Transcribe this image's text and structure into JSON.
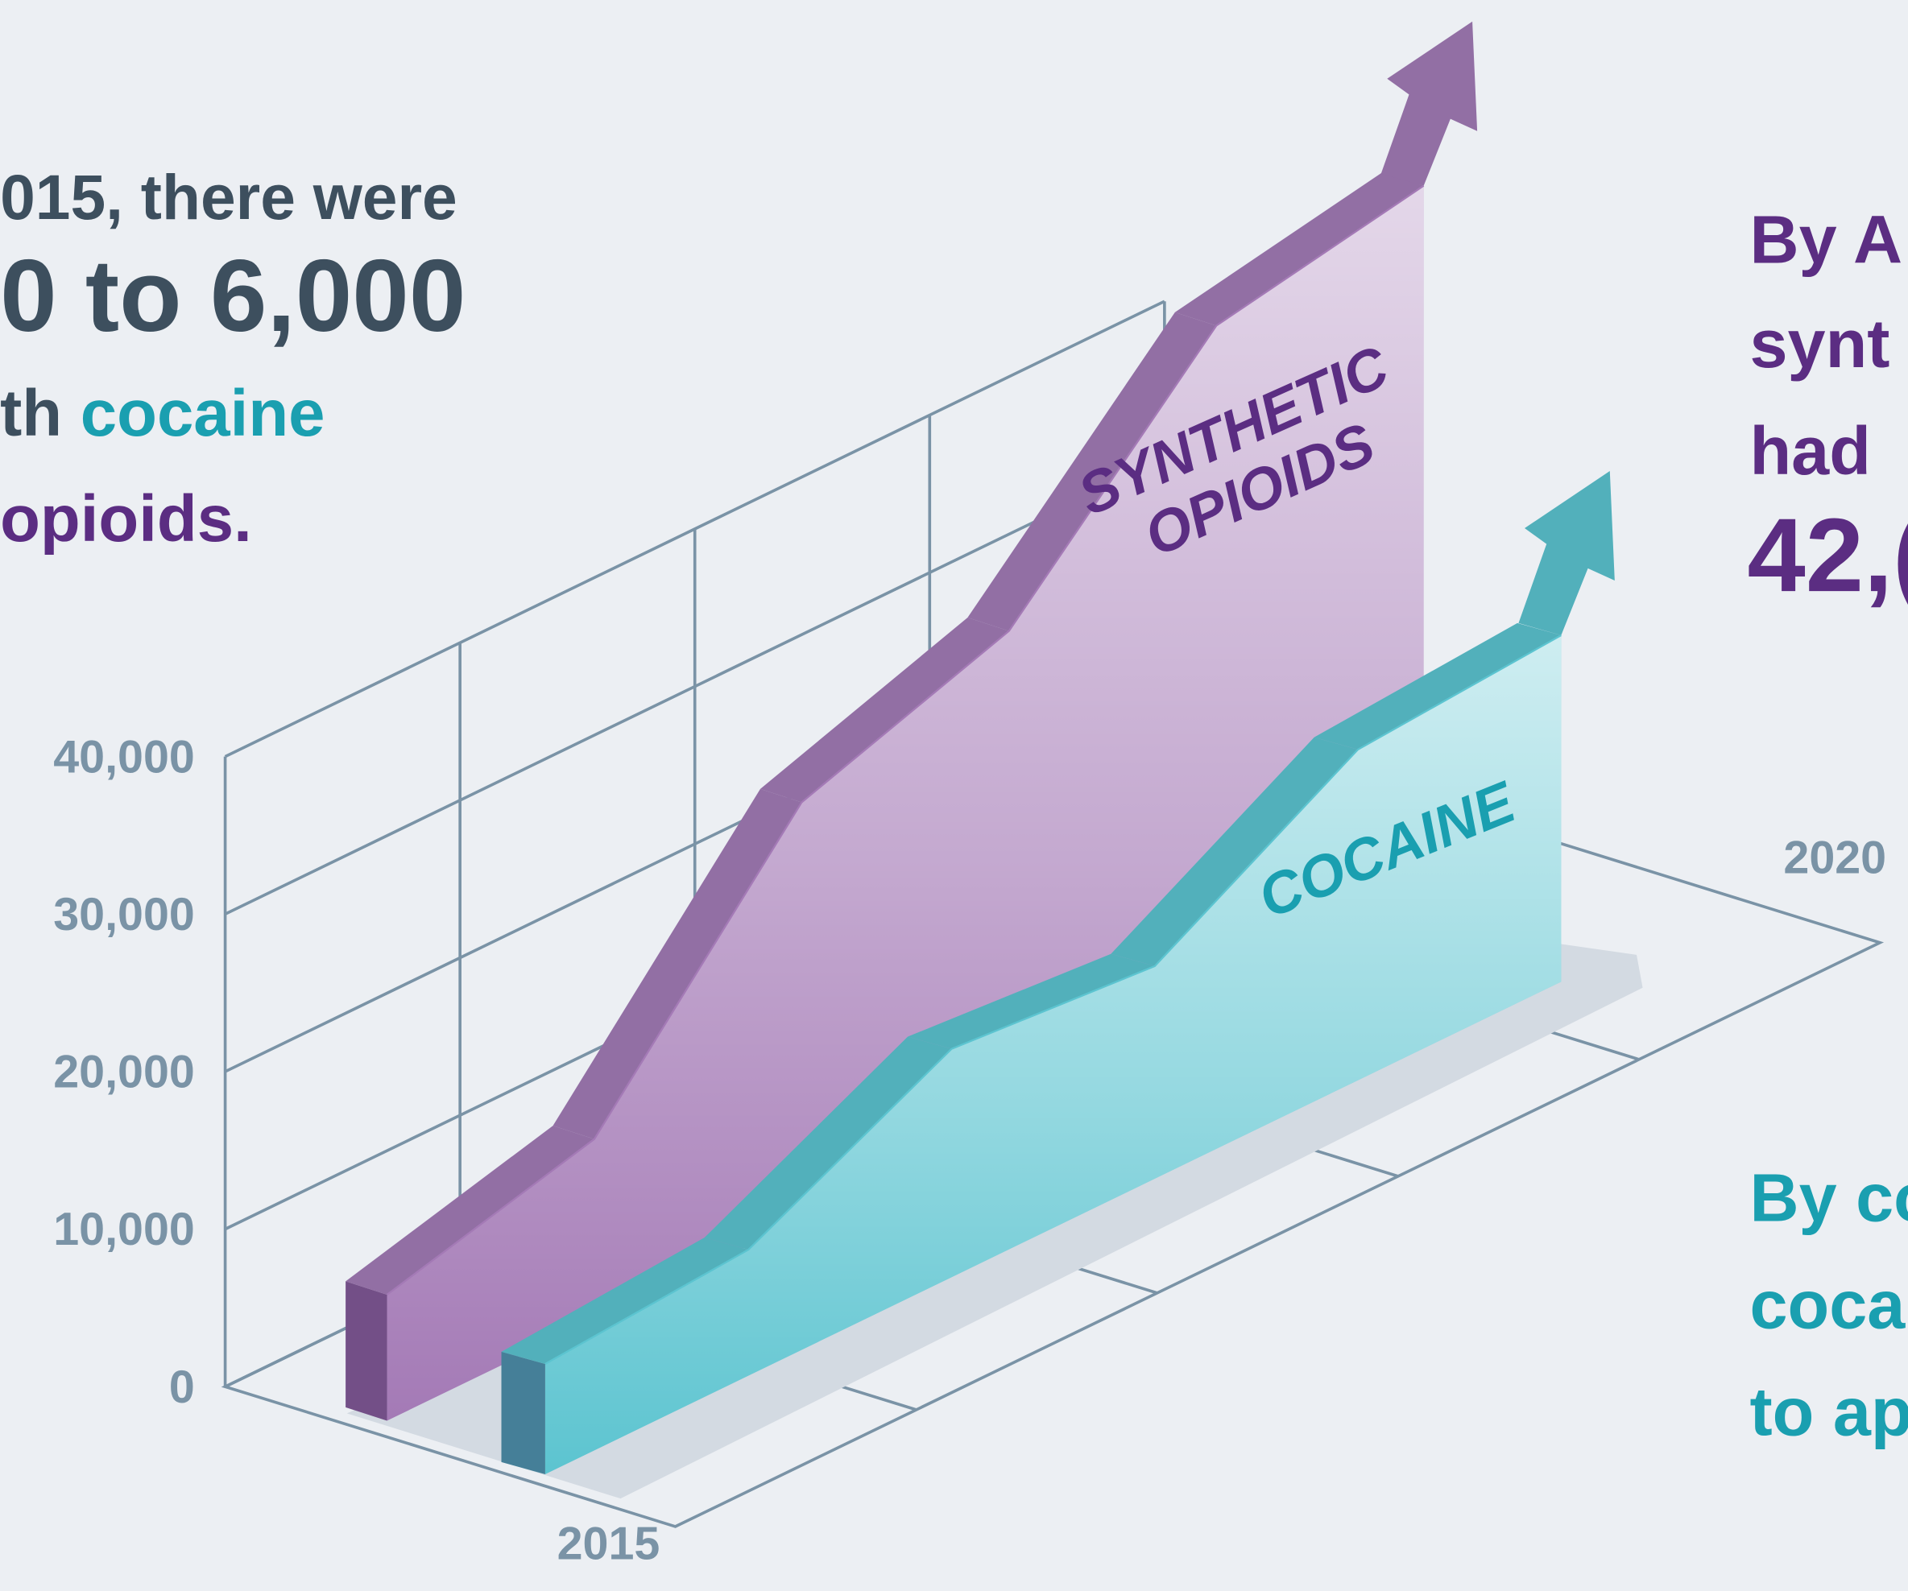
{
  "chart_data": {
    "type": "ribbon3d",
    "categories": [
      "2015",
      null,
      null,
      null,
      null,
      "2020"
    ],
    "series": [
      {
        "name": "SYNTHETIC OPIOIDS",
        "color": "#a47ab6",
        "label_color": "#5b2d82",
        "values": [
          8000,
          11500,
          26500,
          31000,
          44000,
          46500
        ]
      },
      {
        "name": "COCAINE",
        "color": "#5cc4d0",
        "label_color": "#1a9fb0",
        "values": [
          7000,
          8000,
          14500,
          13500,
          21000,
          22000
        ]
      }
    ],
    "ylim": [
      0,
      40000
    ],
    "yticks": [
      0,
      {
        "value": 10000,
        "label": "10,000"
      },
      {
        "value": 20000,
        "label": "20,000"
      },
      {
        "value": 30000,
        "label": "30,000"
      },
      {
        "value": 40000,
        "label": "40,000"
      }
    ],
    "grid": true,
    "text_left": [
      [
        "015, there were"
      ],
      [
        "0 to 6,000"
      ],
      [
        "th ",
        "cocaine"
      ],
      [
        "opioids."
      ]
    ],
    "text_right_top": [
      "By A",
      "synt",
      "had",
      "42,("
    ],
    "text_right_bottom": [
      "By co",
      "coca",
      "to ap"
    ]
  }
}
